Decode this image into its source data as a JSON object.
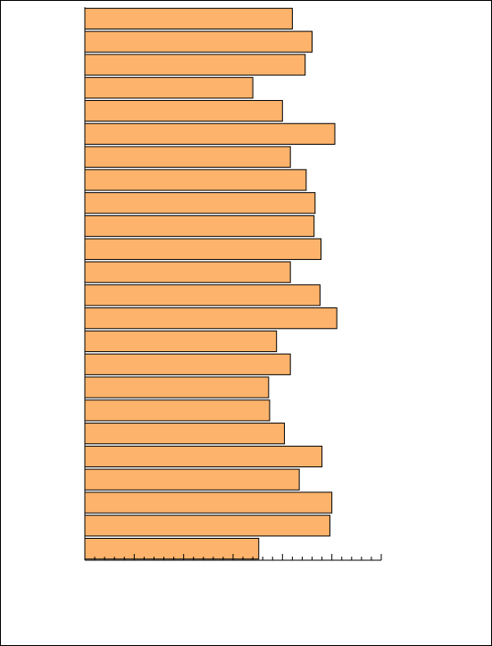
{
  "chart_data": {
    "type": "barh",
    "categories": [
      null,
      null,
      null,
      null,
      null,
      null,
      null,
      null,
      null,
      null,
      null,
      null,
      null,
      null,
      null,
      null,
      null,
      null,
      null,
      null,
      null,
      null,
      null,
      null
    ],
    "values": [
      21.0,
      23.0,
      22.3,
      17.0,
      20.0,
      25.3,
      20.8,
      22.4,
      23.3,
      23.2,
      23.9,
      20.8,
      23.8,
      25.5,
      19.4,
      20.8,
      18.6,
      18.7,
      20.2,
      24.0,
      21.7,
      25.0,
      24.8,
      17.6
    ],
    "color": "#fdb36b",
    "xlim": [
      0,
      30
    ],
    "xticks": [
      0,
      1,
      2,
      3,
      4,
      5,
      6,
      7,
      8,
      9,
      10,
      11,
      12,
      13,
      14,
      15,
      16,
      17,
      18,
      19,
      20,
      21,
      22,
      23,
      24,
      25,
      26,
      27,
      28,
      29,
      30
    ]
  }
}
